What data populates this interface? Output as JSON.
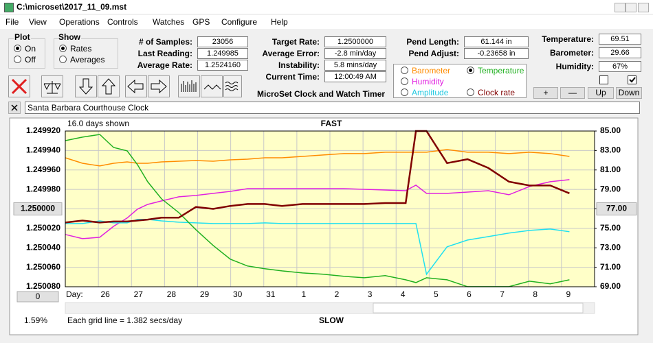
{
  "window": {
    "title": "C:\\microset\\2017_11_09.mst"
  },
  "menu": [
    "File",
    "View",
    "Operations",
    "Controls",
    "Watches",
    "GPS",
    "Configure",
    "Help"
  ],
  "plot_group": {
    "label": "Plot",
    "options": [
      "On",
      "Off"
    ]
  },
  "show_group": {
    "label": "Show",
    "options": [
      "Rates",
      "Averages"
    ]
  },
  "fields": [
    {
      "label": "# of Samples:",
      "value": "23056"
    },
    {
      "label": "Last Reading:",
      "value": "1.249985"
    },
    {
      "label": "Average Rate:",
      "value": "1.2524160"
    },
    {
      "label": "Target Rate:",
      "value": "1.2500000"
    },
    {
      "label": "Average Error:",
      "value": "-2.8 min/day"
    },
    {
      "label": "Instability:",
      "value": "5.8 mins/day"
    },
    {
      "label": "Current Time:",
      "value": "12:00:49 AM"
    },
    {
      "label": "Pend Length:",
      "value": "61.144 in"
    },
    {
      "label": "Pend Adjust:",
      "value": "-0.23658 in"
    },
    {
      "label": "Temperature:",
      "value": "69.51"
    },
    {
      "label": "Barometer:",
      "value": "29.66"
    },
    {
      "label": "Humidity:",
      "value": "67%"
    }
  ],
  "subtitle": "MicroSet Clock and Watch Timer",
  "radio_options": [
    "Barometer",
    "Temperature",
    "Humidity",
    "Amplitude",
    "Clock rate"
  ],
  "buttons": [
    "+",
    "—",
    "Up",
    "Down"
  ],
  "clock_name": "Santa Barbara Courthouse Clock",
  "status": {
    "offset_button": "0",
    "percent": "1.59%"
  },
  "chart_data": {
    "type": "line",
    "title": "FAST",
    "bottom_label": "SLOW",
    "annotation": "16.0 days shown",
    "note": "Each grid line = 1.382 secs/day",
    "x_label": "Day:",
    "x": [
      0,
      0.52,
      1.04,
      1.46,
      1.87,
      2.18,
      2.49,
      2.91,
      3.43,
      3.95,
      4.47,
      4.99,
      5.51,
      6.03,
      6.55,
      7.17,
      7.8,
      8.42,
      9.04,
      9.67,
      10.29,
      10.6,
      10.92,
      11.54,
      12.16,
      12.79,
      13.41,
      14.03,
      14.66,
      15.24
    ],
    "xlim": [
      0,
      16
    ],
    "xticks": [
      {
        "value": 1,
        "label": "26"
      },
      {
        "value": 2,
        "label": "27"
      },
      {
        "value": 3,
        "label": "28"
      },
      {
        "value": 4,
        "label": "29"
      },
      {
        "value": 5,
        "label": "30"
      },
      {
        "value": 6,
        "label": "31"
      },
      {
        "value": 7,
        "label": "1"
      },
      {
        "value": 8,
        "label": "2"
      },
      {
        "value": 9,
        "label": "3"
      },
      {
        "value": 10,
        "label": "4"
      },
      {
        "value": 11,
        "label": "5"
      },
      {
        "value": 12,
        "label": "6"
      },
      {
        "value": 13,
        "label": "7"
      },
      {
        "value": 14,
        "label": "8"
      },
      {
        "value": 15,
        "label": "9"
      }
    ],
    "ylim": [
      1.25008,
      1.24992
    ],
    "yticks": [
      {
        "value": 1.24992,
        "label": "1.249920"
      },
      {
        "value": 1.24994,
        "label": "1.249940"
      },
      {
        "value": 1.24996,
        "label": "1.249960"
      },
      {
        "value": 1.24998,
        "label": "1.249980"
      },
      {
        "value": 1.25,
        "label": "1.250000"
      },
      {
        "value": 1.25002,
        "label": "1.250020"
      },
      {
        "value": 1.25004,
        "label": "1.250040"
      },
      {
        "value": 1.25006,
        "label": "1.250060"
      },
      {
        "value": 1.25008,
        "label": "1.250080"
      }
    ],
    "y2lim": [
      69,
      85
    ],
    "y2ticks": [
      {
        "value": 85,
        "label": "85.00"
      },
      {
        "value": 83,
        "label": "83.00"
      },
      {
        "value": 81,
        "label": "81.00"
      },
      {
        "value": 79,
        "label": "79.00"
      },
      {
        "value": 77,
        "label": "77.00"
      },
      {
        "value": 75,
        "label": "75.00"
      },
      {
        "value": 73,
        "label": "73.00"
      },
      {
        "value": 71,
        "label": "71.00"
      },
      {
        "value": 69,
        "label": "69.00"
      }
    ],
    "grid": true,
    "series": [
      {
        "color": "#ff8c00",
        "axis": "y2",
        "values": [
          82.25,
          81.69,
          81.41,
          81.69,
          81.83,
          81.69,
          81.69,
          81.83,
          81.9,
          81.97,
          81.9,
          82.04,
          82.11,
          82.25,
          82.25,
          82.39,
          82.54,
          82.68,
          82.68,
          82.82,
          82.82,
          82.82,
          82.82,
          83.1,
          82.82,
          82.82,
          82.68,
          82.82,
          82.68,
          82.39
        ]
      },
      {
        "color": "#e020e0",
        "axis": "y2",
        "values": [
          74.37,
          73.94,
          74.08,
          75.21,
          76.06,
          76.97,
          77.46,
          77.82,
          78.24,
          78.38,
          78.59,
          78.8,
          79.08,
          79.08,
          79.08,
          79.08,
          79.08,
          79.08,
          79.01,
          78.94,
          78.87,
          79.44,
          78.59,
          78.59,
          78.73,
          78.87,
          78.45,
          79.3,
          79.79,
          80
        ]
      },
      {
        "color": "#20e0f0",
        "axis": "y2",
        "values": [
          75.49,
          75.49,
          75.77,
          75.56,
          75.56,
          75.92,
          75.92,
          75.77,
          75.63,
          75.56,
          75.49,
          75.49,
          75.49,
          75.56,
          75.49,
          75.49,
          75.49,
          75.49,
          75.49,
          75.49,
          75.49,
          75.49,
          70.28,
          73.1,
          73.8,
          74.15,
          74.51,
          74.79,
          74.93,
          74.65
        ]
      },
      {
        "color": "#20b020",
        "axis": "y2",
        "values": [
          84.01,
          84.37,
          84.65,
          83.31,
          82.96,
          81.55,
          79.79,
          78.03,
          76.62,
          74.86,
          73.24,
          71.83,
          71.13,
          70.85,
          70.63,
          70.42,
          70.28,
          70.07,
          69.92,
          70.14,
          69.71,
          69.43,
          69.92,
          69.71,
          69.01,
          69.01,
          69.01,
          69.57,
          69.3,
          69.71
        ]
      },
      {
        "color": "#800000",
        "axis": "y",
        "values": [
          1.250014,
          1.250012,
          1.250014,
          1.250013,
          1.250013,
          1.250012,
          1.250011,
          1.250009,
          1.250009,
          1.249998,
          1.25,
          1.249997,
          1.249995,
          1.249995,
          1.249997,
          1.249995,
          1.249995,
          1.249995,
          1.249995,
          1.249994,
          1.249994,
          1.24992,
          1.24992,
          1.249953,
          1.249949,
          1.249958,
          1.249972,
          1.249976,
          1.249976,
          1.249984
        ]
      }
    ]
  }
}
